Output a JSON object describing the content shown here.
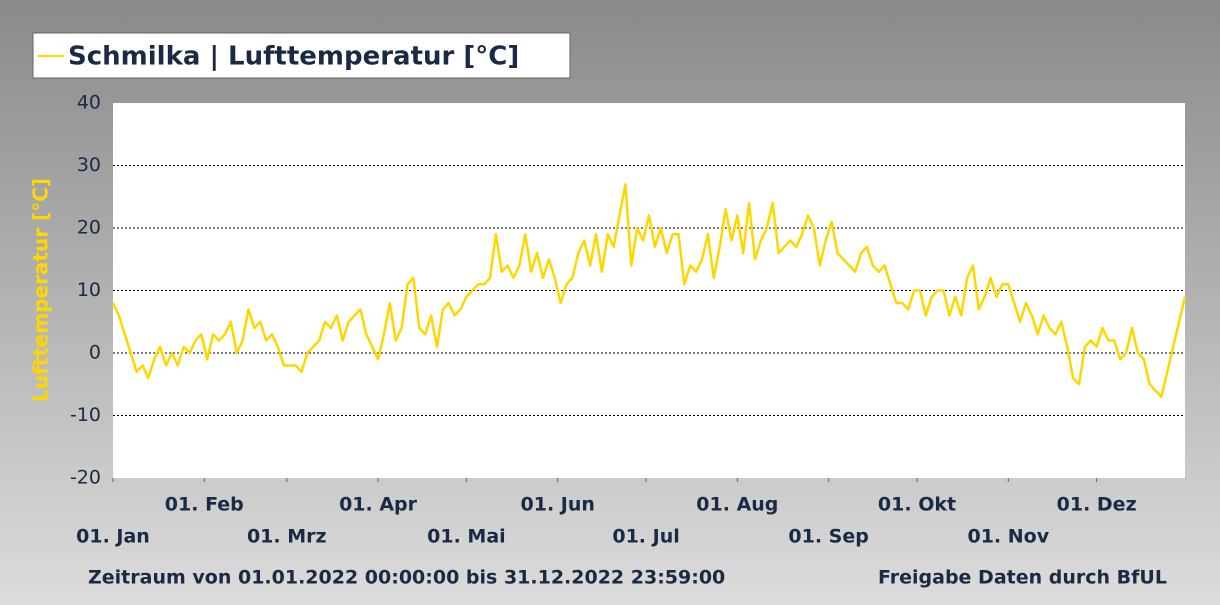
{
  "chart_data": {
    "type": "line",
    "ylabel": "Lufttemperatur [°C]",
    "footer_left": "Zeitraum von 01.01.2022 00:00:00 bis 31.12.2022 23:59:00",
    "footer_right": "Freigabe Daten durch BfUL",
    "x": [
      0,
      2,
      4,
      6,
      8,
      10,
      12,
      14,
      16,
      18,
      20,
      22,
      24,
      26,
      28,
      30,
      32,
      34,
      36,
      38,
      40,
      42,
      44,
      46,
      48,
      50,
      52,
      54,
      56,
      58,
      60,
      62,
      64,
      66,
      68,
      70,
      72,
      74,
      76,
      78,
      80,
      82,
      84,
      86,
      88,
      90,
      92,
      94,
      96,
      98,
      100,
      102,
      104,
      106,
      108,
      110,
      112,
      114,
      116,
      118,
      120,
      122,
      124,
      126,
      128,
      130,
      132,
      134,
      136,
      138,
      140,
      142,
      144,
      146,
      148,
      150,
      152,
      154,
      156,
      158,
      160,
      162,
      164,
      166,
      168,
      170,
      172,
      174,
      176,
      178,
      180,
      182,
      184,
      186,
      188,
      190,
      192,
      194,
      196,
      198,
      200,
      202,
      204,
      206,
      208,
      210,
      212,
      214,
      216,
      218,
      220,
      222,
      224,
      226,
      228,
      230,
      232,
      234,
      236,
      238,
      240,
      242,
      244,
      246,
      248,
      250,
      252,
      254,
      256,
      258,
      260,
      262,
      264,
      266,
      268,
      270,
      272,
      274,
      276,
      278,
      280,
      282,
      284,
      286,
      288,
      290,
      292,
      294,
      296,
      298,
      300,
      302,
      304,
      306,
      308,
      310,
      312,
      314,
      316,
      318,
      320,
      322,
      324,
      326,
      328,
      330,
      332,
      334,
      336,
      338,
      340,
      342,
      344,
      346,
      348,
      350,
      352,
      354,
      356,
      358,
      360,
      362,
      364
    ],
    "series": [
      {
        "name": "Schmilka | Lufttemperatur [°C]",
        "color": "#ffd700",
        "values": [
          8,
          6,
          3,
          0,
          -3,
          -2,
          -4,
          -1,
          1,
          -2,
          0,
          -2,
          1,
          0,
          2,
          3,
          -1,
          3,
          2,
          3,
          5,
          0,
          2,
          7,
          4,
          5,
          2,
          3,
          1,
          -2,
          -2,
          -2,
          -3,
          0,
          1,
          2,
          5,
          4,
          6,
          2,
          5,
          6,
          7,
          3,
          1,
          -1,
          3,
          8,
          2,
          4,
          11,
          12,
          4,
          3,
          6,
          1,
          7,
          8,
          6,
          7,
          9,
          10,
          11,
          11,
          12,
          19,
          13,
          14,
          12,
          14,
          19,
          13,
          16,
          12,
          15,
          12,
          8,
          11,
          12,
          16,
          18,
          14,
          19,
          13,
          19,
          17,
          22,
          27,
          14,
          20,
          18,
          22,
          17,
          20,
          16,
          19,
          19,
          11,
          14,
          13,
          15,
          19,
          12,
          17,
          23,
          18,
          22,
          16,
          24,
          15,
          18,
          20,
          24,
          16,
          17,
          18,
          17,
          19,
          22,
          20,
          14,
          18,
          21,
          16,
          15,
          14,
          13,
          16,
          17,
          14,
          13,
          14,
          11,
          8,
          8,
          7,
          10,
          10,
          6,
          9,
          10,
          10,
          6,
          9,
          6,
          12,
          14,
          7,
          9,
          12,
          9,
          11,
          11,
          8,
          5,
          8,
          6,
          3,
          6,
          4,
          3,
          5,
          1,
          -4,
          -5,
          1,
          2,
          1,
          4,
          2,
          2,
          -1,
          0,
          4,
          0,
          -1,
          -5,
          -6,
          -7,
          -3,
          1,
          5,
          9
        ]
      }
    ],
    "xlim": [
      0,
      364
    ],
    "xticks": [
      {
        "value": 0,
        "label": "01. Jan"
      },
      {
        "value": 31,
        "label": "01. Feb"
      },
      {
        "value": 59,
        "label": "01. Mrz"
      },
      {
        "value": 90,
        "label": "01. Apr"
      },
      {
        "value": 120,
        "label": "01. Mai"
      },
      {
        "value": 151,
        "label": "01. Jun"
      },
      {
        "value": 181,
        "label": "01. Jul"
      },
      {
        "value": 212,
        "label": "01. Aug"
      },
      {
        "value": 243,
        "label": "01. Sep"
      },
      {
        "value": 273,
        "label": "01. Okt"
      },
      {
        "value": 304,
        "label": "01. Nov"
      },
      {
        "value": 334,
        "label": "01. Dez"
      }
    ],
    "ylim": [
      -20,
      40
    ],
    "yticks": [
      -20,
      -10,
      0,
      10,
      20,
      30,
      40
    ],
    "grid": true
  }
}
